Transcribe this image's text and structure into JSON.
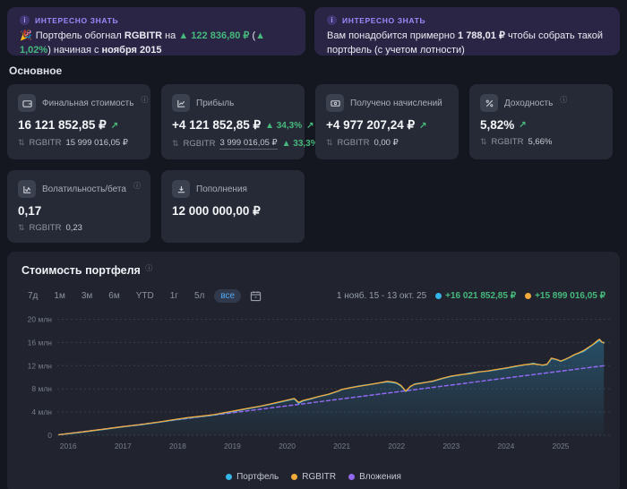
{
  "icons": {
    "info": "ⓘ",
    "trend": "↗",
    "compare": "⇅"
  },
  "insights": [
    {
      "badge": "ИНТЕРЕСНО ЗНАТЬ",
      "emoji": "🎉",
      "parts": [
        {
          "t": "Портфель обогнал ",
          "s": "n"
        },
        {
          "t": "RGBITR",
          "s": "b"
        },
        {
          "t": " на ",
          "s": "n"
        },
        {
          "t": "▲ 122 836,80 ₽",
          "s": "g"
        },
        {
          "t": " (",
          "s": "n"
        },
        {
          "t": "▲ 1,02%",
          "s": "g"
        },
        {
          "t": ") начиная с ",
          "s": "n"
        },
        {
          "t": "ноября 2015",
          "s": "b"
        }
      ]
    },
    {
      "badge": "ИНТЕРЕСНО ЗНАТЬ",
      "parts": [
        {
          "t": "Вам понадобится примерно ",
          "s": "n"
        },
        {
          "t": "1 788,01 ₽",
          "s": "b"
        },
        {
          "t": " чтобы собрать такой портфель (с учетом лотности)",
          "s": "n"
        }
      ]
    }
  ],
  "sections": {
    "main_label": "Основное"
  },
  "metrics": [
    {
      "title": "Финальная стоимость",
      "value": "16 121 852,85 ₽",
      "sub_label": "RGBITR",
      "sub_value": "15 999 016,05 ₽"
    },
    {
      "title": "Прибыль",
      "value": "+4 121 852,85 ₽",
      "badge": "▲ 34,3%",
      "sub_label": "RGBITR",
      "sub_value": "3 999 016,05 ₽",
      "sub_badge": "▲ 33,3%"
    },
    {
      "title": "Получено начислений",
      "value": "+4 977 207,24 ₽",
      "sub_label": "RGBITR",
      "sub_value": "0,00 ₽"
    },
    {
      "title": "Доходность",
      "value": "5,82%",
      "sub_label": "RGBITR",
      "sub_value": "5,66%"
    },
    {
      "title": "Волатильность/бета",
      "value": "0,17",
      "sub_label": "RGBITR",
      "sub_value": "0,23"
    },
    {
      "title": "Пополнения",
      "value": "12 000 000,00 ₽"
    }
  ],
  "chart": {
    "title": "Стоимость портфеля",
    "ranges": [
      "7д",
      "1м",
      "3м",
      "6м",
      "YTD",
      "1г",
      "5л",
      "все"
    ],
    "selected_range": "все",
    "date_range": "1 нояб. 15 - 13 окт. 25",
    "header_values": [
      {
        "color": "#35b6e8",
        "text": "+16 021 852,85 ₽"
      },
      {
        "color": "#f2a93b",
        "text": "+15 899 016,05 ₽"
      }
    ]
  },
  "chart_data": {
    "type": "area",
    "title": "Стоимость портфеля",
    "xlim": [
      2015.8,
      2025.95
    ],
    "ylim": [
      0,
      21
    ],
    "x_ticks": [
      "2016",
      "2017",
      "2018",
      "2019",
      "2020",
      "2021",
      "2022",
      "2023",
      "2024",
      "2025"
    ],
    "y_ticks": [
      {
        "v": 0,
        "label": "0"
      },
      {
        "v": 4,
        "label": "4 млн"
      },
      {
        "v": 8,
        "label": "8 млн"
      },
      {
        "v": 12,
        "label": "12 млн"
      },
      {
        "v": 16,
        "label": "16 млн"
      },
      {
        "v": 20,
        "label": "20 млн"
      }
    ],
    "x": [
      2015.83,
      2016.0,
      2016.17,
      2016.33,
      2016.5,
      2016.67,
      2016.83,
      2017.0,
      2017.17,
      2017.33,
      2017.5,
      2017.67,
      2017.83,
      2018.0,
      2018.17,
      2018.33,
      2018.5,
      2018.67,
      2018.83,
      2019.0,
      2019.17,
      2019.33,
      2019.5,
      2019.67,
      2019.83,
      2020.0,
      2020.13,
      2020.21,
      2020.29,
      2020.42,
      2020.58,
      2020.75,
      2020.92,
      2021.0,
      2021.17,
      2021.33,
      2021.5,
      2021.67,
      2021.83,
      2021.92,
      2022.0,
      2022.08,
      2022.17,
      2022.25,
      2022.33,
      2022.5,
      2022.67,
      2022.83,
      2023.0,
      2023.17,
      2023.33,
      2023.5,
      2023.67,
      2023.83,
      2024.0,
      2024.17,
      2024.33,
      2024.5,
      2024.67,
      2024.75,
      2024.83,
      2024.92,
      2025.0,
      2025.08,
      2025.17,
      2025.25,
      2025.33,
      2025.42,
      2025.5,
      2025.58,
      2025.67,
      2025.71,
      2025.75,
      2025.79
    ],
    "series": [
      {
        "name": "Портфель",
        "color": "#35b6e8",
        "fill": true,
        "values": [
          0.1,
          0.27,
          0.44,
          0.62,
          0.83,
          1.03,
          1.23,
          1.45,
          1.63,
          1.8,
          2.02,
          2.25,
          2.5,
          2.74,
          2.96,
          3.14,
          3.3,
          3.5,
          3.8,
          4.08,
          4.38,
          4.65,
          4.95,
          5.28,
          5.62,
          5.98,
          6.25,
          5.5,
          5.9,
          6.22,
          6.65,
          7.02,
          7.55,
          7.88,
          8.25,
          8.52,
          8.75,
          9.02,
          9.18,
          9.1,
          8.95,
          8.5,
          7.55,
          8.35,
          8.85,
          9.1,
          9.3,
          9.75,
          10.15,
          10.4,
          10.72,
          10.95,
          11.05,
          11.3,
          11.55,
          11.85,
          12.12,
          12.42,
          12.05,
          12.2,
          13.2,
          13.05,
          12.75,
          13.05,
          13.45,
          13.85,
          14.15,
          14.45,
          15.0,
          15.55,
          16.1,
          16.4,
          16.05,
          16.02
        ]
      },
      {
        "name": "RGBITR",
        "color": "#f2a93b",
        "values": [
          0.1,
          0.3,
          0.48,
          0.67,
          0.88,
          1.08,
          1.28,
          1.5,
          1.68,
          1.85,
          2.08,
          2.3,
          2.55,
          2.8,
          3.02,
          3.2,
          3.36,
          3.56,
          3.86,
          4.15,
          4.45,
          4.72,
          5.0,
          5.35,
          5.7,
          6.05,
          6.35,
          5.65,
          6.0,
          6.3,
          6.7,
          7.05,
          7.58,
          7.9,
          8.22,
          8.48,
          8.72,
          9.0,
          9.3,
          9.2,
          9.05,
          8.6,
          7.62,
          8.42,
          8.78,
          9.05,
          9.35,
          9.8,
          10.2,
          10.45,
          10.6,
          10.9,
          11.1,
          11.35,
          11.6,
          11.9,
          12.15,
          12.3,
          12.1,
          12.25,
          13.3,
          13.1,
          12.8,
          13.1,
          13.5,
          13.9,
          14.2,
          14.6,
          15.1,
          15.6,
          16.3,
          16.55,
          16.1,
          15.9
        ]
      },
      {
        "name": "Вложения",
        "color": "#9168f0",
        "dash": true,
        "x": [
          2015.83,
          2025.79
        ],
        "values": [
          0.1,
          12.0
        ]
      }
    ]
  }
}
